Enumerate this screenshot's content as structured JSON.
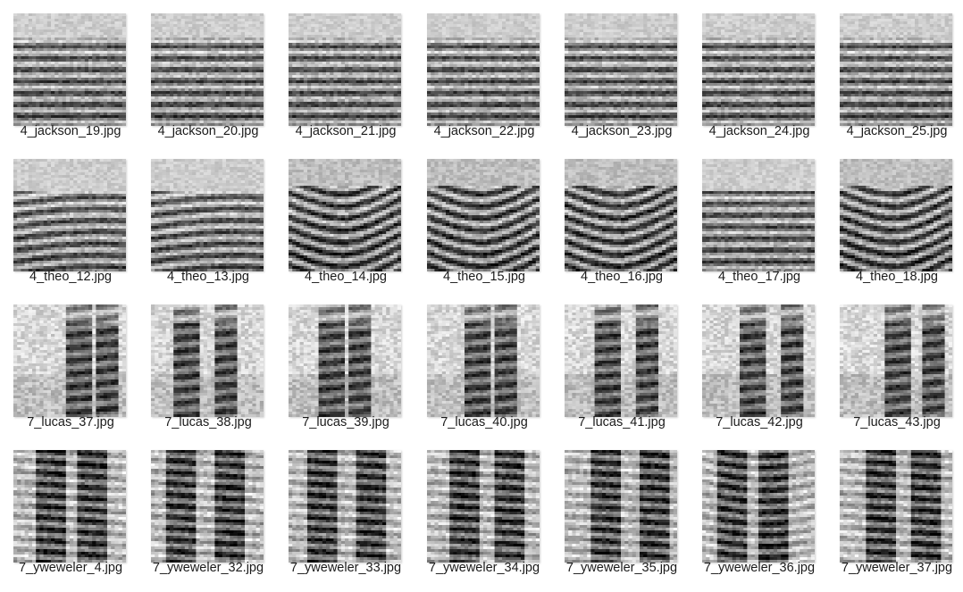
{
  "window": {
    "view": "large-icons",
    "thumbnail_type": "spectrogram"
  },
  "files": [
    {
      "name": "4_jackson_19.jpg",
      "icon": "spectrogram-thumbnail"
    },
    {
      "name": "4_jackson_20.jpg",
      "icon": "spectrogram-thumbnail"
    },
    {
      "name": "4_jackson_21.jpg",
      "icon": "spectrogram-thumbnail"
    },
    {
      "name": "4_jackson_22.jpg",
      "icon": "spectrogram-thumbnail"
    },
    {
      "name": "4_jackson_23.jpg",
      "icon": "spectrogram-thumbnail"
    },
    {
      "name": "4_jackson_24.jpg",
      "icon": "spectrogram-thumbnail"
    },
    {
      "name": "4_jackson_25.jpg",
      "icon": "spectrogram-thumbnail"
    },
    {
      "name": "4_theo_12.jpg",
      "icon": "spectrogram-thumbnail"
    },
    {
      "name": "4_theo_13.jpg",
      "icon": "spectrogram-thumbnail"
    },
    {
      "name": "4_theo_14.jpg",
      "icon": "spectrogram-thumbnail"
    },
    {
      "name": "4_theo_15.jpg",
      "icon": "spectrogram-thumbnail"
    },
    {
      "name": "4_theo_16.jpg",
      "icon": "spectrogram-thumbnail"
    },
    {
      "name": "4_theo_17.jpg",
      "icon": "spectrogram-thumbnail"
    },
    {
      "name": "4_theo_18.jpg",
      "icon": "spectrogram-thumbnail"
    },
    {
      "name": "7_lucas_37.jpg",
      "icon": "spectrogram-thumbnail"
    },
    {
      "name": "7_lucas_38.jpg",
      "icon": "spectrogram-thumbnail"
    },
    {
      "name": "7_lucas_39.jpg",
      "icon": "spectrogram-thumbnail"
    },
    {
      "name": "7_lucas_40.jpg",
      "icon": "spectrogram-thumbnail"
    },
    {
      "name": "7_lucas_41.jpg",
      "icon": "spectrogram-thumbnail"
    },
    {
      "name": "7_lucas_42.jpg",
      "icon": "spectrogram-thumbnail"
    },
    {
      "name": "7_lucas_43.jpg",
      "icon": "spectrogram-thumbnail"
    },
    {
      "name": "7_yweweler_4.jpg",
      "icon": "spectrogram-thumbnail"
    },
    {
      "name": "7_yweweler_32.jpg",
      "icon": "spectrogram-thumbnail"
    },
    {
      "name": "7_yweweler_33.jpg",
      "icon": "spectrogram-thumbnail"
    },
    {
      "name": "7_yweweler_34.jpg",
      "icon": "spectrogram-thumbnail"
    },
    {
      "name": "7_yweweler_35.jpg",
      "icon": "spectrogram-thumbnail"
    },
    {
      "name": "7_yweweler_36.jpg",
      "icon": "spectrogram-thumbnail"
    },
    {
      "name": "7_yweweler_37.jpg",
      "icon": "spectrogram-thumbnail"
    }
  ]
}
